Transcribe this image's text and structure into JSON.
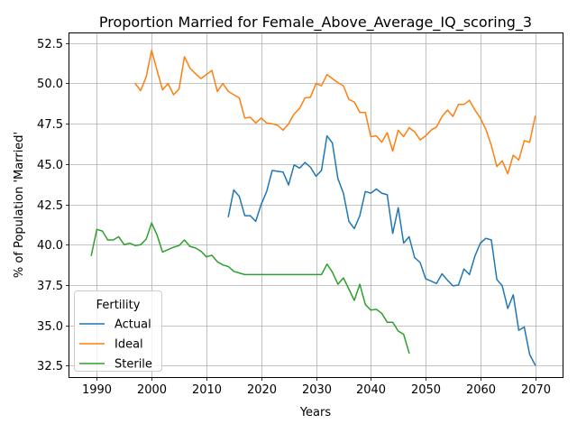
{
  "chart_data": {
    "type": "line",
    "title": "Proportion Married for Female_Above_Average_IQ_scoring_3",
    "xlabel": "Years",
    "ylabel": "% of Population 'Married'",
    "xlim": [
      1985,
      2075
    ],
    "ylim": [
      31.8,
      53.1
    ],
    "xticks": [
      1990,
      2000,
      2010,
      2020,
      2030,
      2040,
      2050,
      2060,
      2070
    ],
    "yticks": [
      32.5,
      35.0,
      37.5,
      40.0,
      42.5,
      45.0,
      47.5,
      50.0,
      52.5
    ],
    "ytick_labels": [
      "32.5",
      "35.0",
      "37.5",
      "40.0",
      "42.5",
      "45.0",
      "47.5",
      "50.0",
      "52.5"
    ],
    "grid": true,
    "legend": {
      "title": "Fertility",
      "position": "bottom-left"
    },
    "series": [
      {
        "name": "Actual",
        "color": "#1f77b4",
        "x": [
          2014,
          2015,
          2016,
          2017,
          2018,
          2019,
          2020,
          2021,
          2022,
          2023,
          2024,
          2025,
          2026,
          2027,
          2028,
          2029,
          2030,
          2031,
          2032,
          2033,
          2034,
          2035,
          2036,
          2037,
          2038,
          2039,
          2040,
          2041,
          2042,
          2043,
          2044,
          2045,
          2046,
          2047,
          2048,
          2049,
          2050,
          2051,
          2052,
          2053,
          2054,
          2055,
          2056,
          2057,
          2058,
          2059,
          2060,
          2061,
          2062,
          2063,
          2064,
          2065,
          2066,
          2067,
          2068,
          2069,
          2070
        ],
        "y": [
          41.75,
          43.4,
          43.0,
          41.8,
          41.8,
          41.45,
          42.5,
          43.3,
          44.6,
          44.55,
          44.5,
          43.7,
          44.95,
          44.75,
          45.1,
          44.8,
          44.25,
          44.6,
          46.75,
          46.3,
          44.1,
          43.2,
          41.45,
          41.0,
          41.8,
          43.3,
          43.2,
          43.45,
          43.2,
          43.1,
          40.7,
          42.3,
          40.1,
          40.5,
          39.2,
          38.9,
          37.9,
          37.75,
          37.6,
          38.2,
          37.8,
          37.45,
          37.5,
          38.5,
          38.15,
          39.3,
          40.1,
          40.4,
          40.3,
          37.85,
          37.45,
          36.05,
          36.9,
          34.7,
          34.9,
          33.2,
          32.55
        ]
      },
      {
        "name": "Ideal",
        "color": "#ff7f0e",
        "x": [
          1997,
          1998,
          1999,
          2000,
          2001,
          2002,
          2003,
          2004,
          2005,
          2006,
          2007,
          2008,
          2009,
          2010,
          2011,
          2012,
          2013,
          2014,
          2015,
          2016,
          2017,
          2018,
          2019,
          2020,
          2021,
          2022,
          2023,
          2024,
          2025,
          2026,
          2027,
          2028,
          2029,
          2030,
          2031,
          2032,
          2033,
          2034,
          2035,
          2036,
          2037,
          2038,
          2039,
          2040,
          2041,
          2042,
          2043,
          2044,
          2045,
          2046,
          2047,
          2048,
          2049,
          2050,
          2051,
          2052,
          2053,
          2054,
          2055,
          2056,
          2057,
          2058,
          2059,
          2060,
          2061,
          2062,
          2063,
          2064,
          2065,
          2066,
          2067,
          2068,
          2069,
          2070
        ],
        "y": [
          50.0,
          49.55,
          50.4,
          52.05,
          50.8,
          49.6,
          50.0,
          49.3,
          49.65,
          51.65,
          50.95,
          50.6,
          50.3,
          50.55,
          50.8,
          49.5,
          50.0,
          49.5,
          49.3,
          49.1,
          47.85,
          47.9,
          47.55,
          47.85,
          47.55,
          47.5,
          47.4,
          47.1,
          47.5,
          48.1,
          48.45,
          49.1,
          49.15,
          50.0,
          49.85,
          50.55,
          50.3,
          50.05,
          49.85,
          49.0,
          48.85,
          48.2,
          48.2,
          46.7,
          46.75,
          46.35,
          46.95,
          45.8,
          47.1,
          46.7,
          47.25,
          47.0,
          46.5,
          46.75,
          47.1,
          47.3,
          47.95,
          48.35,
          47.95,
          48.7,
          48.7,
          48.95,
          48.35,
          47.85,
          47.15,
          46.15,
          44.85,
          45.2,
          44.4,
          45.55,
          45.25,
          46.45,
          46.35,
          47.95
        ]
      },
      {
        "name": "Sterile",
        "color": "#2ca02c",
        "x": [
          1989,
          1990,
          1991,
          1992,
          1993,
          1994,
          1995,
          1996,
          1997,
          1998,
          1999,
          2000,
          2001,
          2002,
          2003,
          2004,
          2005,
          2006,
          2007,
          2008,
          2009,
          2010,
          2011,
          2012,
          2013,
          2014,
          2015,
          2016,
          2017,
          2018,
          2019,
          2020,
          2021,
          2022,
          2023,
          2024,
          2025,
          2026,
          2027,
          2028,
          2029,
          2030,
          2031,
          2032,
          2033,
          2034,
          2035,
          2036,
          2037,
          2038,
          2039,
          2040,
          2041,
          2042,
          2043,
          2044,
          2045,
          2046,
          2047
        ],
        "y": [
          39.35,
          40.95,
          40.85,
          40.3,
          40.3,
          40.5,
          40.0,
          40.1,
          39.95,
          40.0,
          40.35,
          41.35,
          40.6,
          39.55,
          39.7,
          39.85,
          39.95,
          40.3,
          39.9,
          39.8,
          39.6,
          39.25,
          39.35,
          38.95,
          38.75,
          38.65,
          38.35,
          38.25,
          38.15,
          38.15,
          38.15,
          38.15,
          38.15,
          38.15,
          38.15,
          38.15,
          38.15,
          38.15,
          38.15,
          38.15,
          38.15,
          38.15,
          38.15,
          38.8,
          38.3,
          37.55,
          37.95,
          37.25,
          36.55,
          37.55,
          36.3,
          35.95,
          36.0,
          35.75,
          35.2,
          35.2,
          34.65,
          34.45,
          33.3
        ]
      }
    ]
  }
}
